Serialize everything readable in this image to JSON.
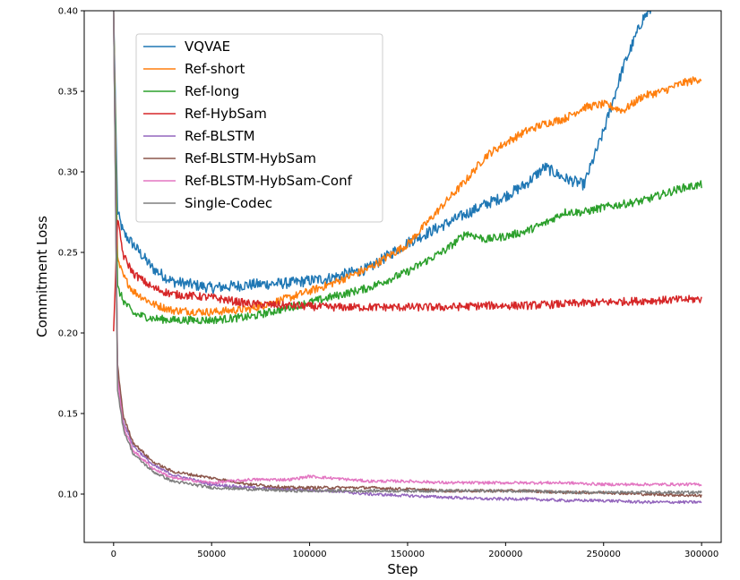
{
  "chart_data": {
    "type": "line",
    "title": "",
    "xlabel": "Step",
    "ylabel": "Commitment Loss",
    "xlim": [
      -15000,
      310000
    ],
    "ylim": [
      0.07,
      0.4
    ],
    "xticks": [
      0,
      50000,
      100000,
      150000,
      200000,
      250000,
      300000
    ],
    "xtick_labels": [
      "0",
      "50000",
      "100000",
      "150000",
      "200000",
      "250000",
      "300000"
    ],
    "yticks": [
      0.1,
      0.15,
      0.2,
      0.25,
      0.3,
      0.35,
      0.4
    ],
    "ytick_labels": [
      "0.10",
      "0.15",
      "0.20",
      "0.25",
      "0.30",
      "0.35",
      "0.40"
    ],
    "grid": false,
    "legend_position": "top-left",
    "series": [
      {
        "name": "VQVAE",
        "color": "#1f77b4",
        "x": [
          0,
          2000,
          5000,
          10000,
          20000,
          30000,
          50000,
          70000,
          90000,
          110000,
          130000,
          150000,
          170000,
          190000,
          200000,
          210000,
          220000,
          230000,
          240000,
          250000,
          260000,
          270000,
          275000
        ],
        "y": [
          0.4,
          0.275,
          0.262,
          0.255,
          0.24,
          0.232,
          0.228,
          0.23,
          0.231,
          0.234,
          0.24,
          0.256,
          0.268,
          0.28,
          0.285,
          0.292,
          0.303,
          0.296,
          0.292,
          0.325,
          0.365,
          0.395,
          0.402
        ]
      },
      {
        "name": "Ref-short",
        "color": "#ff7f0e",
        "x": [
          0,
          2000,
          5000,
          10000,
          20000,
          30000,
          50000,
          70000,
          90000,
          110000,
          130000,
          150000,
          170000,
          180000,
          190000,
          200000,
          210000,
          220000,
          230000,
          240000,
          250000,
          260000,
          270000,
          280000,
          290000,
          300000
        ],
        "y": [
          0.4,
          0.245,
          0.235,
          0.226,
          0.218,
          0.214,
          0.213,
          0.215,
          0.222,
          0.23,
          0.24,
          0.255,
          0.282,
          0.295,
          0.31,
          0.318,
          0.325,
          0.33,
          0.333,
          0.34,
          0.342,
          0.338,
          0.347,
          0.35,
          0.355,
          0.358
        ]
      },
      {
        "name": "Ref-long",
        "color": "#2ca02c",
        "x": [
          0,
          2000,
          5000,
          10000,
          20000,
          30000,
          50000,
          70000,
          90000,
          110000,
          130000,
          150000,
          170000,
          180000,
          190000,
          200000,
          210000,
          220000,
          230000,
          240000,
          250000,
          260000,
          270000,
          280000,
          290000,
          300000
        ],
        "y": [
          0.4,
          0.228,
          0.22,
          0.212,
          0.209,
          0.208,
          0.208,
          0.21,
          0.216,
          0.222,
          0.228,
          0.238,
          0.252,
          0.262,
          0.258,
          0.26,
          0.263,
          0.268,
          0.275,
          0.275,
          0.278,
          0.28,
          0.282,
          0.286,
          0.29,
          0.292
        ]
      },
      {
        "name": "Ref-HybSam",
        "color": "#d62728",
        "x": [
          0,
          2000,
          5000,
          10000,
          20000,
          30000,
          50000,
          70000,
          90000,
          110000,
          130000,
          150000,
          170000,
          190000,
          210000,
          230000,
          250000,
          270000,
          300000
        ],
        "y": [
          0.201,
          0.27,
          0.248,
          0.237,
          0.228,
          0.224,
          0.222,
          0.218,
          0.217,
          0.216,
          0.216,
          0.216,
          0.216,
          0.217,
          0.217,
          0.218,
          0.219,
          0.22,
          0.221
        ]
      },
      {
        "name": "Ref-BLSTM",
        "color": "#9467bd",
        "x": [
          0,
          2000,
          5000,
          10000,
          20000,
          30000,
          50000,
          70000,
          90000,
          110000,
          130000,
          150000,
          170000,
          190000,
          210000,
          230000,
          250000,
          270000,
          300000
        ],
        "y": [
          0.4,
          0.175,
          0.145,
          0.13,
          0.118,
          0.112,
          0.106,
          0.104,
          0.103,
          0.102,
          0.1,
          0.099,
          0.098,
          0.097,
          0.097,
          0.096,
          0.096,
          0.095,
          0.095
        ]
      },
      {
        "name": "Ref-BLSTM-HybSam",
        "color": "#8c564b",
        "x": [
          0,
          2000,
          5000,
          10000,
          20000,
          30000,
          50000,
          70000,
          90000,
          110000,
          130000,
          150000,
          170000,
          190000,
          210000,
          230000,
          250000,
          270000,
          300000
        ],
        "y": [
          0.4,
          0.18,
          0.148,
          0.132,
          0.12,
          0.114,
          0.11,
          0.106,
          0.104,
          0.104,
          0.104,
          0.103,
          0.102,
          0.102,
          0.102,
          0.101,
          0.101,
          0.1,
          0.099
        ]
      },
      {
        "name": "Ref-BLSTM-HybSam-Conf",
        "color": "#e377c2",
        "x": [
          0,
          2000,
          5000,
          10000,
          20000,
          30000,
          50000,
          70000,
          90000,
          100000,
          110000,
          130000,
          150000,
          170000,
          190000,
          210000,
          230000,
          250000,
          270000,
          300000
        ],
        "y": [
          0.4,
          0.172,
          0.142,
          0.127,
          0.116,
          0.11,
          0.107,
          0.109,
          0.109,
          0.111,
          0.11,
          0.108,
          0.108,
          0.107,
          0.107,
          0.107,
          0.107,
          0.106,
          0.106,
          0.106
        ]
      },
      {
        "name": "Single-Codec",
        "color": "#7f7f7f",
        "x": [
          0,
          2000,
          5000,
          10000,
          20000,
          30000,
          50000,
          70000,
          90000,
          110000,
          130000,
          150000,
          170000,
          190000,
          210000,
          230000,
          250000,
          270000,
          300000
        ],
        "y": [
          0.4,
          0.165,
          0.14,
          0.125,
          0.114,
          0.108,
          0.104,
          0.103,
          0.102,
          0.102,
          0.102,
          0.102,
          0.102,
          0.102,
          0.102,
          0.101,
          0.101,
          0.101,
          0.101
        ]
      }
    ]
  }
}
